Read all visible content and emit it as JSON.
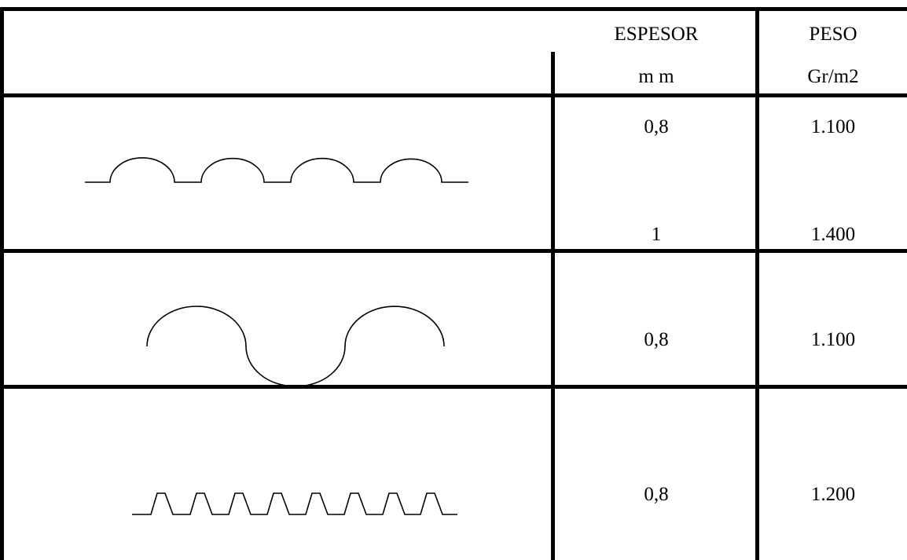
{
  "headers": {
    "espesor": "ESPESOR",
    "espesor_unit": "m m",
    "peso": "PESO",
    "peso_unit": "Gr/m2"
  },
  "rows": [
    {
      "profile": "round-crest-corrugation-profile",
      "values": [
        {
          "espesor": "0,8",
          "peso": "1.100"
        },
        {
          "espesor": "1",
          "peso": "1.400"
        }
      ]
    },
    {
      "profile": "sinusoidal-wave-profile",
      "values": [
        {
          "espesor": "0,8",
          "peso": "1.100"
        }
      ]
    },
    {
      "profile": "trapezoidal-profile",
      "values": [
        {
          "espesor": "0,8",
          "peso": "1.200"
        }
      ]
    }
  ]
}
